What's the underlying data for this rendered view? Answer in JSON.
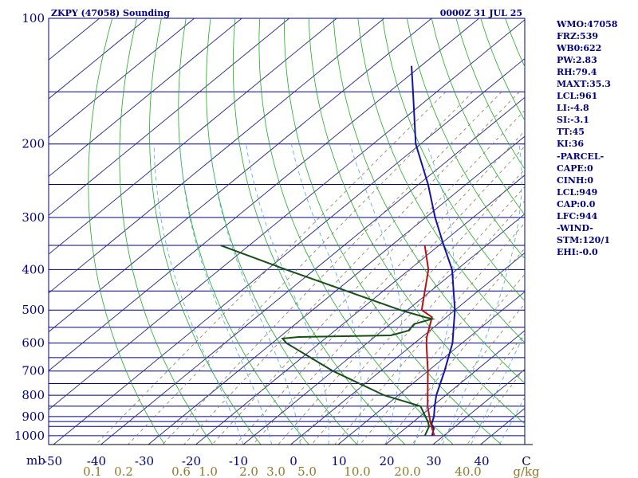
{
  "header": {
    "title": "ZKPY (47058) Sounding",
    "time": "0000Z 31 JUL 25"
  },
  "indices": [
    "WMO:47058",
    "FRZ:539",
    "WB0:622",
    "PW:2.83",
    "RH:79.4",
    "MAXT:35.3",
    "LCL:961",
    "LI:-4.8",
    "SI:-3.1",
    "TT:45",
    "KI:36",
    "-PARCEL-",
    "CAPE:0",
    "CINH:0",
    "LCL:949",
    "CAP:0.0",
    "LFC:944",
    "-WIND-",
    "STM:120/1",
    "EHI:-0.0"
  ],
  "chart_data": {
    "type": "line",
    "diagram": "skew-T log-P",
    "y_axis": {
      "unit": "mb",
      "scale": "log",
      "range": [
        1050,
        100
      ],
      "tick_labels": [
        "100",
        "200",
        "300",
        "400",
        "500",
        "600",
        "700",
        "800",
        "900",
        "1000"
      ],
      "isobars": [
        100,
        150,
        200,
        250,
        300,
        350,
        400,
        450,
        500,
        550,
        600,
        650,
        700,
        750,
        800,
        850,
        900,
        925,
        950,
        1000
      ]
    },
    "x_axis": {
      "unit": "C",
      "range": [
        -50,
        50
      ],
      "tick_labels": [
        "-50",
        "-40",
        "-30",
        "-20",
        "-10",
        "0",
        "10",
        "20",
        "30",
        "40",
        "C"
      ]
    },
    "mixing_ratio_axis": {
      "unit": "g/kg",
      "values": [
        0.1,
        0.2,
        0.6,
        1.0,
        2.0,
        3.0,
        5.0,
        10.0,
        20.0,
        40.0
      ],
      "labels": [
        "0.1",
        "0.2",
        "0.6",
        "1.0",
        "2.0",
        "3.0",
        "5.0",
        "10.0",
        "20.0",
        "40.0"
      ]
    },
    "series": [
      {
        "id": "parcel",
        "color": "#1414a0",
        "points": [
          [
            1000,
            27.5
          ],
          [
            960,
            26
          ],
          [
            940,
            24.5
          ],
          [
            900,
            23
          ],
          [
            850,
            20.5
          ],
          [
            800,
            18
          ],
          [
            700,
            13.5
          ],
          [
            600,
            8
          ],
          [
            500,
            0
          ],
          [
            400,
            -11
          ],
          [
            350,
            -19
          ],
          [
            300,
            -28
          ],
          [
            250,
            -38
          ],
          [
            200,
            -51
          ],
          [
            150,
            -65
          ],
          [
            130,
            -72
          ]
        ]
      },
      {
        "id": "temperature",
        "color": "#b41414",
        "points": [
          [
            1000,
            28
          ],
          [
            950,
            25
          ],
          [
            925,
            23.5
          ],
          [
            850,
            19
          ],
          [
            700,
            10
          ],
          [
            600,
            2.5
          ],
          [
            580,
            1
          ],
          [
            520,
            -3
          ],
          [
            500,
            -7
          ],
          [
            400,
            -16
          ],
          [
            350,
            -23
          ]
        ]
      },
      {
        "id": "dewpoint",
        "color": "#145014",
        "points": [
          [
            1000,
            26
          ],
          [
            950,
            24.5
          ],
          [
            925,
            23
          ],
          [
            850,
            17.5
          ],
          [
            800,
            7
          ],
          [
            700,
            -10
          ],
          [
            600,
            -27
          ],
          [
            585,
            -29
          ],
          [
            580,
            -26
          ],
          [
            575,
            -7
          ],
          [
            560,
            -4.5
          ],
          [
            540,
            -5
          ],
          [
            525,
            -2.5
          ],
          [
            520,
            -4.5
          ],
          [
            500,
            -11.5
          ],
          [
            400,
            -46
          ],
          [
            350,
            -66
          ]
        ]
      }
    ]
  },
  "colors": {
    "isobar": "#000080",
    "dry_adiabat": "#22aa22",
    "moist_adiabat": "#4aa8d8",
    "mixing_ratio": "#8a7a50",
    "parcel": "#1414a0",
    "temperature": "#b41414",
    "dewpoint": "#145014",
    "label_text": "#000080",
    "mixing_label_text": "#8c7a28"
  }
}
